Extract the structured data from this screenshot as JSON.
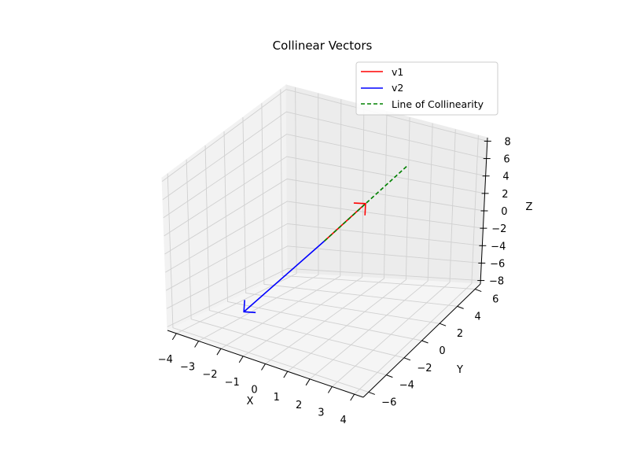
{
  "chart_data": {
    "type": "line",
    "projection": "3d",
    "title": "Collinear Vectors",
    "xlabel": "X",
    "ylabel": "Y",
    "zlabel": "Z",
    "xlim": [
      -4.4,
      4.4
    ],
    "ylim": [
      -6.6,
      6.6
    ],
    "zlim": [
      -8.4,
      8.4
    ],
    "xticks": [
      "−4",
      "−3",
      "−2",
      "−1",
      "0",
      "1",
      "2",
      "3",
      "4"
    ],
    "yticks": [
      "−6",
      "−4",
      "−2",
      "0",
      "2",
      "4",
      "6"
    ],
    "zticks": [
      "−8",
      "−6",
      "−4",
      "−2",
      "0",
      "2",
      "4",
      "6",
      "8"
    ],
    "grid": true,
    "legend": {
      "placement": "top-right",
      "entries": [
        {
          "name": "v1",
          "color": "#ff0000",
          "style": "solid"
        },
        {
          "name": "v2",
          "color": "#0000ff",
          "style": "solid"
        },
        {
          "name": "Line of Collinearity",
          "color": "#008000",
          "style": "dashed"
        }
      ]
    },
    "series": [
      {
        "name": "v1",
        "kind": "arrow",
        "color": "#ff0000",
        "from": [
          0,
          0,
          0
        ],
        "to": [
          1,
          2,
          3
        ]
      },
      {
        "name": "v2",
        "kind": "arrow",
        "color": "#0000ff",
        "from": [
          0,
          0,
          0
        ],
        "to": [
          -2,
          -4,
          -6
        ]
      },
      {
        "name": "Line of Collinearity",
        "kind": "dashed-line",
        "color": "#008000",
        "from": [
          0,
          0,
          0
        ],
        "to": [
          2,
          4,
          6
        ]
      }
    ]
  }
}
